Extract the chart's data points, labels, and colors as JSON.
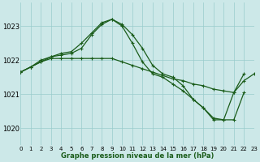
{
  "title": "Graphe pression niveau de la mer (hPa)",
  "background_color": "#cce8e8",
  "grid_color": "#99cccc",
  "line_color": "#1a5c1a",
  "xlim": [
    0,
    23
  ],
  "ylim": [
    1019.5,
    1023.7
  ],
  "yticks": [
    1020,
    1021,
    1022,
    1023
  ],
  "xtick_labels": [
    "0",
    "1",
    "2",
    "3",
    "4",
    "5",
    "6",
    "7",
    "8",
    "9",
    "10",
    "11",
    "12",
    "13",
    "14",
    "15",
    "16",
    "17",
    "18",
    "19",
    "20",
    "21",
    "22",
    "23"
  ],
  "series1_flat": {
    "x": [
      0,
      1,
      2,
      3,
      4,
      5,
      6,
      7,
      8,
      9,
      10,
      11,
      12,
      13,
      14,
      15,
      16,
      17,
      18,
      19,
      20,
      21,
      22,
      23
    ],
    "y": [
      1021.65,
      1021.8,
      1021.95,
      1022.05,
      1022.05,
      1022.05,
      1022.05,
      1022.05,
      1022.05,
      1022.05,
      1021.95,
      1021.85,
      1021.75,
      1021.65,
      1021.55,
      1021.45,
      1021.4,
      1021.3,
      1021.25,
      1021.15,
      1021.1,
      1021.05,
      1021.4,
      1021.6
    ]
  },
  "series2_peak": {
    "x": [
      0,
      1,
      2,
      3,
      4,
      5,
      6,
      7,
      8,
      9,
      10,
      11,
      12,
      13,
      14,
      15,
      16,
      17,
      18,
      19,
      20,
      21,
      22,
      23
    ],
    "y": [
      1021.65,
      1021.8,
      1021.95,
      1022.1,
      1022.15,
      1022.2,
      1022.35,
      1022.75,
      1023.05,
      1023.2,
      1023.05,
      1022.75,
      1022.35,
      1021.85,
      1021.6,
      1021.5,
      1021.25,
      1020.85,
      1020.6,
      1020.25,
      1020.25,
      1021.05,
      1021.6,
      null
    ]
  },
  "series3_peak2": {
    "x": [
      0,
      1,
      2,
      3,
      4,
      5,
      6,
      7,
      8,
      9,
      10,
      11,
      12,
      13,
      14,
      15,
      16,
      17,
      18,
      19,
      20,
      21,
      22,
      23
    ],
    "y": [
      1021.65,
      1021.8,
      1022.0,
      1022.1,
      1022.2,
      1022.25,
      1022.5,
      1022.8,
      1023.1,
      1023.2,
      1023.0,
      1022.5,
      1021.95,
      1021.6,
      1021.5,
      1021.3,
      1021.1,
      1020.85,
      1020.6,
      1020.3,
      1020.25,
      1020.25,
      1021.05,
      null
    ]
  }
}
